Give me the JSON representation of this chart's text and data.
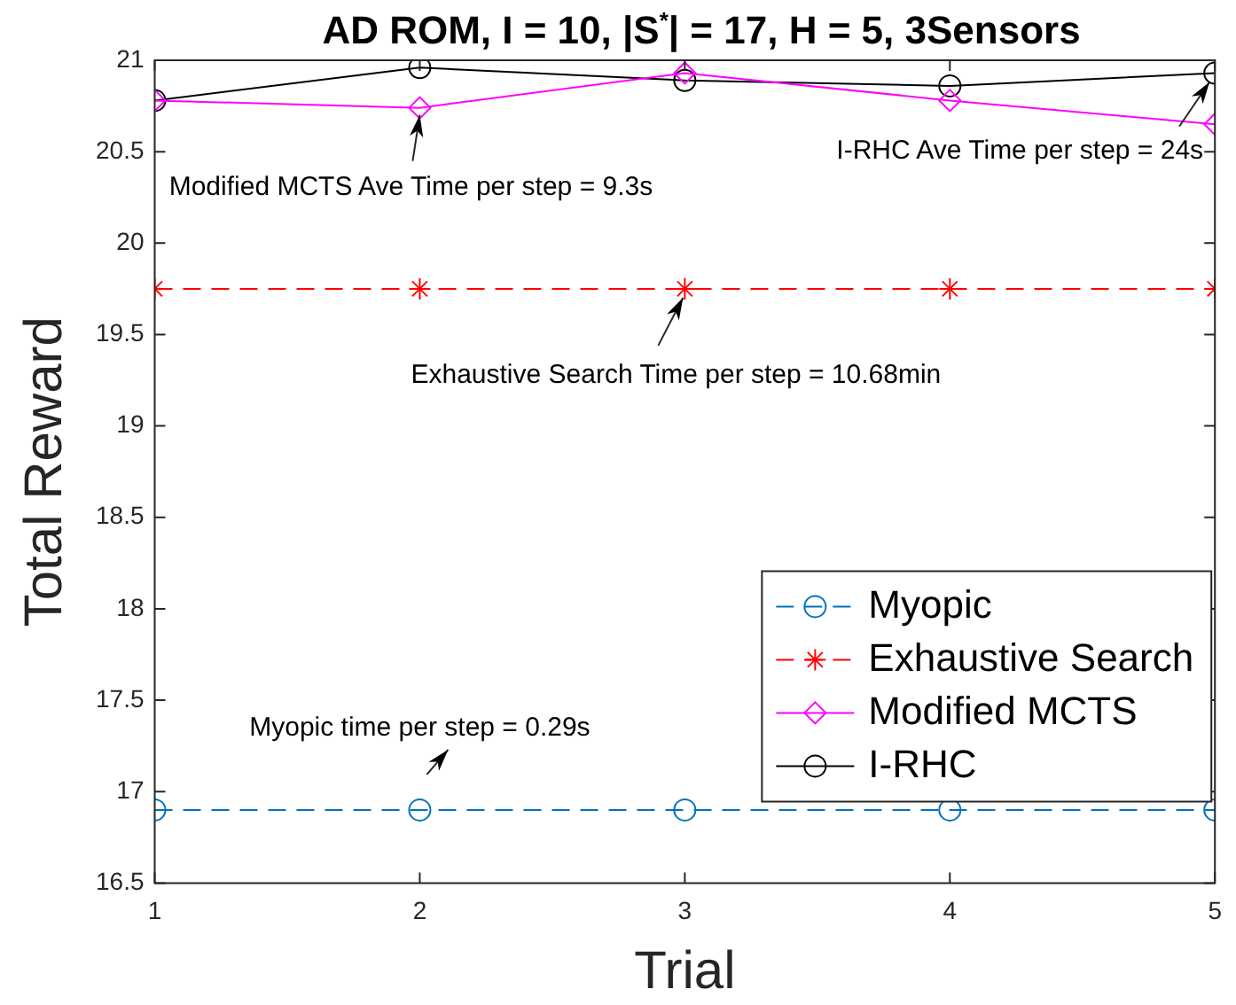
{
  "chart_data": {
    "type": "line",
    "title": "AD ROM, I = 10, |S$^{*}$| = 17, H = 5, 3Sensors",
    "xlabel": "Trial",
    "ylabel": "Total Reward",
    "x": [
      1,
      2,
      3,
      4,
      5
    ],
    "series": [
      {
        "name": "Myopic",
        "color": "#0072bd",
        "values": [
          16.9,
          16.9,
          16.9,
          16.9,
          16.9
        ],
        "marker": "circle",
        "line_style": "dashed"
      },
      {
        "name": "Exhaustive Search",
        "color": "#ff0000",
        "values": [
          19.75,
          19.75,
          19.75,
          19.75,
          19.75
        ],
        "marker": "cross",
        "line_style": "dashed"
      },
      {
        "name": "Modified MCTS",
        "color": "#ff00ff",
        "values": [
          20.78,
          20.74,
          20.93,
          20.78,
          20.65
        ],
        "marker": "diamond",
        "line_style": "solid"
      },
      {
        "name": "I-RHC",
        "color": "#000000",
        "values": [
          20.78,
          20.96,
          20.89,
          20.86,
          20.93
        ],
        "marker": "circle",
        "line_style": "solid"
      }
    ],
    "xlim": [
      1,
      5
    ],
    "xticks": [
      1,
      2,
      3,
      4,
      5
    ],
    "ylim": [
      16.5,
      21
    ],
    "yticks": [
      16.5,
      17,
      17.5,
      18,
      18.5,
      19,
      19.5,
      20,
      20.5,
      21
    ],
    "grid": false,
    "legend": "bottom right",
    "annotations": [
      {
        "text": "Modified MCTS Ave Time per step = 9.3s",
        "x": 2,
        "y": 20.74
      },
      {
        "text": "I-RHC Ave Time per step = 24s",
        "x": 5,
        "y": 20.93
      },
      {
        "text": "Exhaustive Search Time per step = 10.68min",
        "x": 3,
        "y": 19.75
      },
      {
        "text": "Myopic time per step = 0.29s",
        "x": 2,
        "y": 16.9
      }
    ]
  }
}
